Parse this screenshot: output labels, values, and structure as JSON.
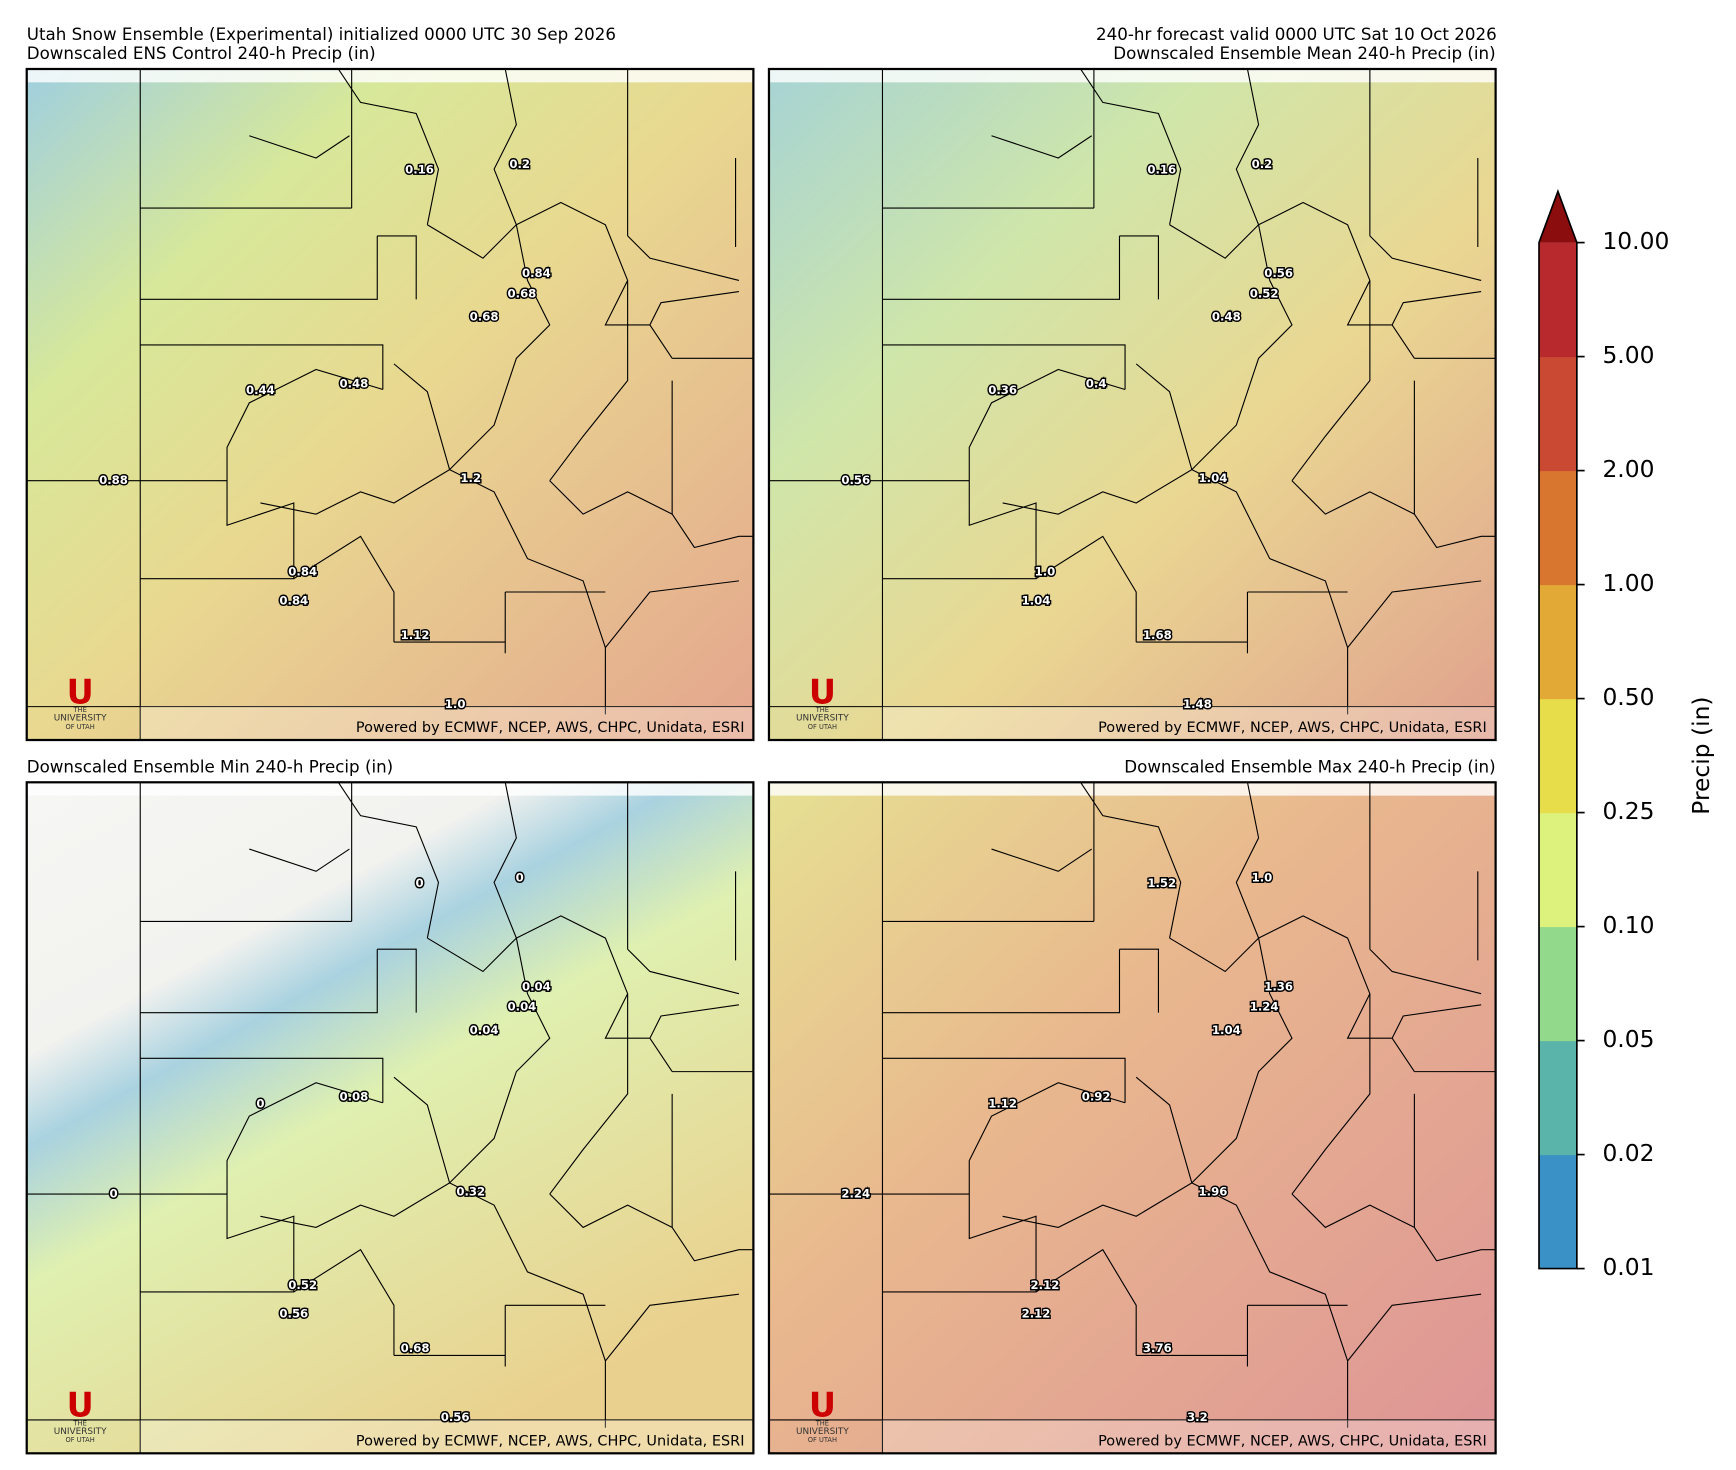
{
  "header": {
    "left": "Utah Snow Ensemble (Experimental) initialized 0000 UTC 30 Sep 2026",
    "right": "240-hr forecast valid 0000 UTC Sat 10 Oct 2026"
  },
  "panels": [
    {
      "title": "Downscaled ENS Control 240-h Precip (in)",
      "points": [
        "0.16",
        "0.2",
        "0.84",
        "0.68",
        "0.68",
        "0.44",
        "0.48",
        "0.88",
        "1.2",
        "0.84",
        "0.84",
        "1.12",
        "1.0"
      ]
    },
    {
      "title": "Downscaled Ensemble Mean 240-h Precip (in)",
      "points": [
        "0.16",
        "0.2",
        "0.56",
        "0.52",
        "0.48",
        "0.36",
        "0.4",
        "0.56",
        "1.04",
        "1.0",
        "1.04",
        "1.68",
        "1.48"
      ]
    },
    {
      "title": "Downscaled Ensemble Min 240-h Precip (in)",
      "points": [
        "0",
        "0",
        "0.04",
        "0.04",
        "0.04",
        "0",
        "0.08",
        "0",
        "0.32",
        "0.52",
        "0.56",
        "0.68",
        "0.56"
      ]
    },
    {
      "title": "Downscaled Ensemble Max 240-h Precip (in)",
      "points": [
        "1.52",
        "1.0",
        "1.36",
        "1.24",
        "1.04",
        "1.12",
        "0.92",
        "2.24",
        "1.96",
        "2.12",
        "2.12",
        "3.76",
        "3.2"
      ]
    }
  ],
  "logo": {
    "mark": "U",
    "lines": [
      "THE",
      "UNIVERSITY",
      "OF UTAH"
    ]
  },
  "credit": "Powered by ECMWF, NCEP, AWS, CHPC, Unidata, ESRI",
  "colorbar": {
    "label": "Precip (in)",
    "ticks": [
      "0.01",
      "0.02",
      "0.05",
      "0.10",
      "0.25",
      "0.50",
      "1.00",
      "2.00",
      "5.00",
      "10.00"
    ],
    "colors": [
      "#3a91c6",
      "#5ab4aa",
      "#92d98b",
      "#dcf27c",
      "#e7dc4a",
      "#e2a937",
      "#d8762f",
      "#ca4932",
      "#b8292e"
    ],
    "extend_color": "#8b0d0d"
  }
}
